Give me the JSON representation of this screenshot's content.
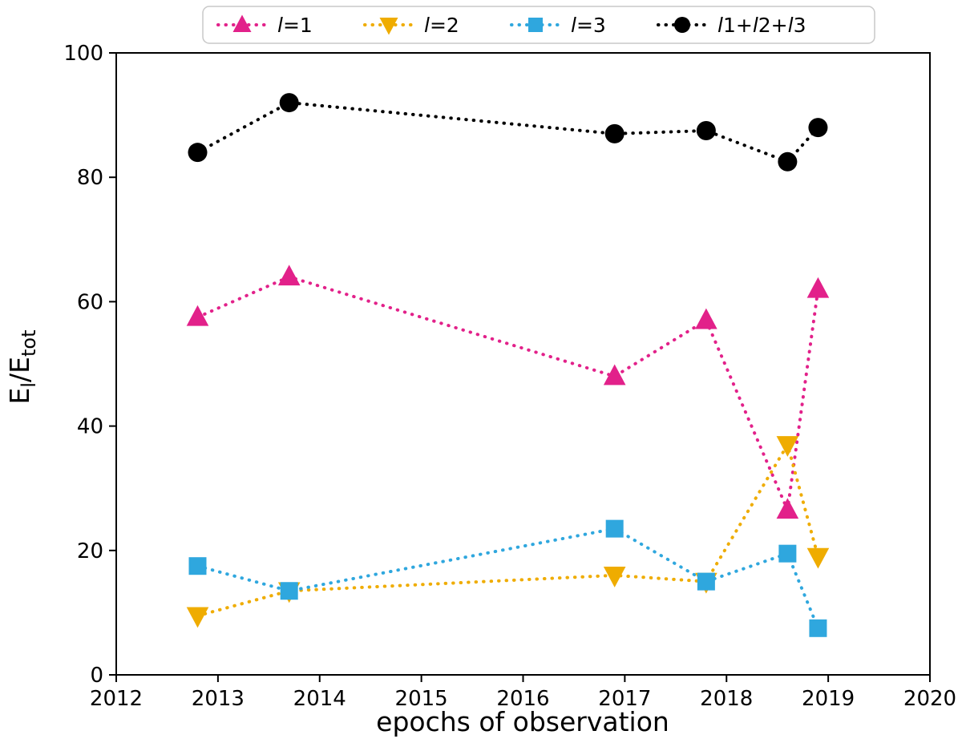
{
  "figure": {
    "background": "#ffffff"
  },
  "chart_data": {
    "type": "line",
    "title": "",
    "xlabel": "epochs of observation",
    "ylabel": "E_l/E_tot",
    "ylabel_parts": [
      {
        "text": "E",
        "sub": false
      },
      {
        "text": "l",
        "sub": true
      },
      {
        "text": "/E",
        "sub": false
      },
      {
        "text": "tot",
        "sub": true
      }
    ],
    "xlim": [
      2012,
      2020
    ],
    "ylim": [
      0,
      100
    ],
    "xticks": [
      2012,
      2013,
      2014,
      2015,
      2016,
      2017,
      2018,
      2019,
      2020
    ],
    "yticks": [
      0,
      20,
      40,
      60,
      80,
      100
    ],
    "grid": false,
    "line_style": "dotted",
    "legend_position": "top",
    "axis_color": "#000000",
    "legend_border_color": "#c9c9c9",
    "x": [
      2012.8,
      2013.7,
      2016.9,
      2017.8,
      2018.6,
      2018.9
    ],
    "series": [
      {
        "name": "l=1",
        "marker": "triangle-up",
        "color": "#E2218A",
        "values": [
          57.5,
          64,
          48,
          57,
          26.5,
          62
        ]
      },
      {
        "name": "l=2",
        "marker": "triangle-down",
        "color": "#EFAC00",
        "values": [
          9.5,
          13.5,
          16,
          15,
          37,
          19
        ]
      },
      {
        "name": "l=3",
        "marker": "square",
        "color": "#2FA7DE",
        "values": [
          17.5,
          13.5,
          23.5,
          15,
          19.5,
          7.5
        ]
      },
      {
        "name": "l1+l2+l3",
        "marker": "circle",
        "color": "#000000",
        "values": [
          84,
          92,
          87,
          87.5,
          82.5,
          88
        ]
      }
    ]
  }
}
